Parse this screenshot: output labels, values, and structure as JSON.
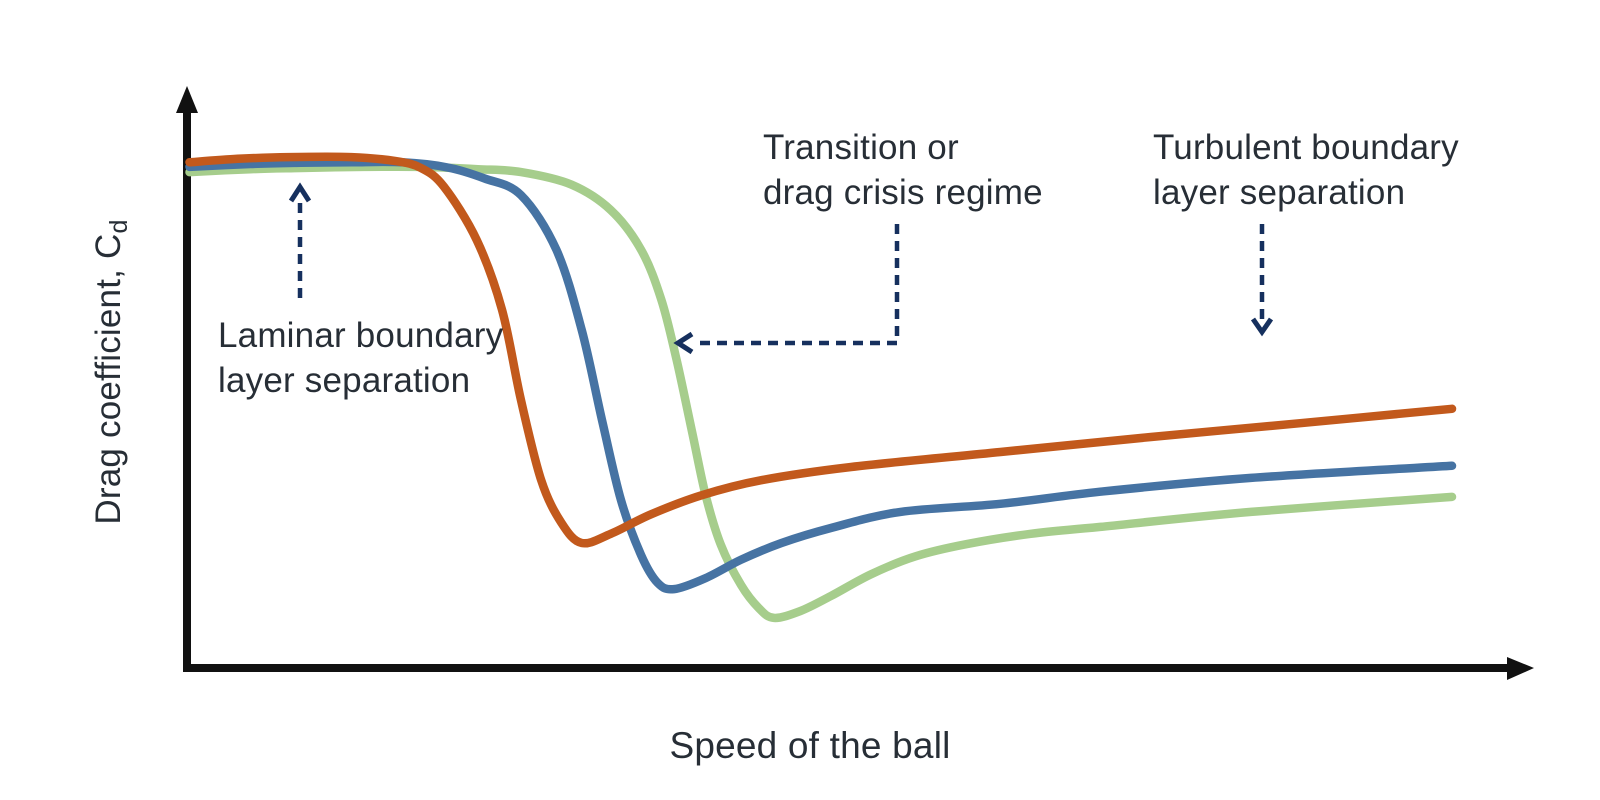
{
  "colors": {
    "background": "#ffffff",
    "axis": "#111111",
    "text": "#272e36",
    "annotation_arrow": "#16305e",
    "curve_orange": "#c2591c",
    "curve_blue": "#4673a3",
    "curve_green": "#a6cd8c"
  },
  "labels": {
    "x_axis": "Speed of the ball",
    "y_axis_main": "Drag coefficient, C",
    "y_axis_sub": "d",
    "laminar_line1": "Laminar boundary",
    "laminar_line2": "layer separation",
    "transition_line1": "Transition or",
    "transition_line2": "drag crisis regime",
    "turbulent_line1": "Turbulent boundary",
    "turbulent_line2": "layer separation"
  },
  "chart_data": {
    "type": "line",
    "title": "",
    "xlabel": "Speed of the ball",
    "ylabel": "Drag coefficient, Cd",
    "x_range": [
      0,
      100
    ],
    "y_range": [
      0,
      1
    ],
    "axes_style": "qualitative arrow axes, no ticks, no numeric labels",
    "grid": false,
    "legend": "none",
    "series": [
      {
        "name": "green",
        "color": "#a6cd8c",
        "points": [
          [
            0.2,
            0.861
          ],
          [
            5,
            0.866
          ],
          [
            9,
            0.868
          ],
          [
            14,
            0.87
          ],
          [
            18.5,
            0.87
          ],
          [
            23,
            0.866
          ],
          [
            26.4,
            0.861
          ],
          [
            30.4,
            0.839
          ],
          [
            33.5,
            0.795
          ],
          [
            35.9,
            0.726
          ],
          [
            37.5,
            0.639
          ],
          [
            38.7,
            0.535
          ],
          [
            39.9,
            0.413
          ],
          [
            41,
            0.3
          ],
          [
            42.2,
            0.214
          ],
          [
            43.8,
            0.144
          ],
          [
            45.2,
            0.104
          ],
          [
            46.4,
            0.087
          ],
          [
            48.5,
            0.099
          ],
          [
            50.9,
            0.125
          ],
          [
            54.1,
            0.163
          ],
          [
            57.6,
            0.194
          ],
          [
            61.6,
            0.215
          ],
          [
            66.7,
            0.233
          ],
          [
            72.2,
            0.245
          ],
          [
            84.1,
            0.271
          ],
          [
            100,
            0.297
          ]
        ]
      },
      {
        "name": "blue",
        "color": "#4673a3",
        "points": [
          [
            0.2,
            0.87
          ],
          [
            5,
            0.875
          ],
          [
            9,
            0.877
          ],
          [
            13,
            0.878
          ],
          [
            17,
            0.878
          ],
          [
            20.6,
            0.869
          ],
          [
            23.5,
            0.85
          ],
          [
            26.4,
            0.821
          ],
          [
            29.2,
            0.726
          ],
          [
            31.2,
            0.587
          ],
          [
            32.8,
            0.431
          ],
          [
            34.3,
            0.292
          ],
          [
            35.9,
            0.196
          ],
          [
            37.2,
            0.148
          ],
          [
            38.5,
            0.137
          ],
          [
            41,
            0.156
          ],
          [
            43.8,
            0.188
          ],
          [
            47,
            0.217
          ],
          [
            50.9,
            0.243
          ],
          [
            56.4,
            0.271
          ],
          [
            64.3,
            0.285
          ],
          [
            72.2,
            0.306
          ],
          [
            84.1,
            0.33
          ],
          [
            100,
            0.351
          ]
        ]
      },
      {
        "name": "orange",
        "color": "#c2591c",
        "points": [
          [
            0.2,
            0.878
          ],
          [
            4,
            0.884
          ],
          [
            8,
            0.887
          ],
          [
            13,
            0.887
          ],
          [
            16.5,
            0.88
          ],
          [
            18.5,
            0.868
          ],
          [
            20.3,
            0.836
          ],
          [
            22.9,
            0.743
          ],
          [
            24.9,
            0.622
          ],
          [
            26.4,
            0.465
          ],
          [
            28,
            0.326
          ],
          [
            29.6,
            0.252
          ],
          [
            31.2,
            0.217
          ],
          [
            33.5,
            0.233
          ],
          [
            36.7,
            0.267
          ],
          [
            40.7,
            0.3
          ],
          [
            45.4,
            0.326
          ],
          [
            52.5,
            0.349
          ],
          [
            64.3,
            0.375
          ],
          [
            76.2,
            0.401
          ],
          [
            88,
            0.425
          ],
          [
            100,
            0.45
          ]
        ]
      }
    ],
    "annotations": [
      {
        "text": "Laminar boundary layer separation",
        "arrow": "dashed vertical arrow pointing up at flat high-Cd plateau of curves"
      },
      {
        "text": "Transition or drag crisis regime",
        "arrow": "dashed elbow arrow pointing left at steep drop of green curve"
      },
      {
        "text": "Turbulent boundary layer separation",
        "arrow": "dashed vertical arrow pointing down toward post-crisis region"
      }
    ]
  }
}
